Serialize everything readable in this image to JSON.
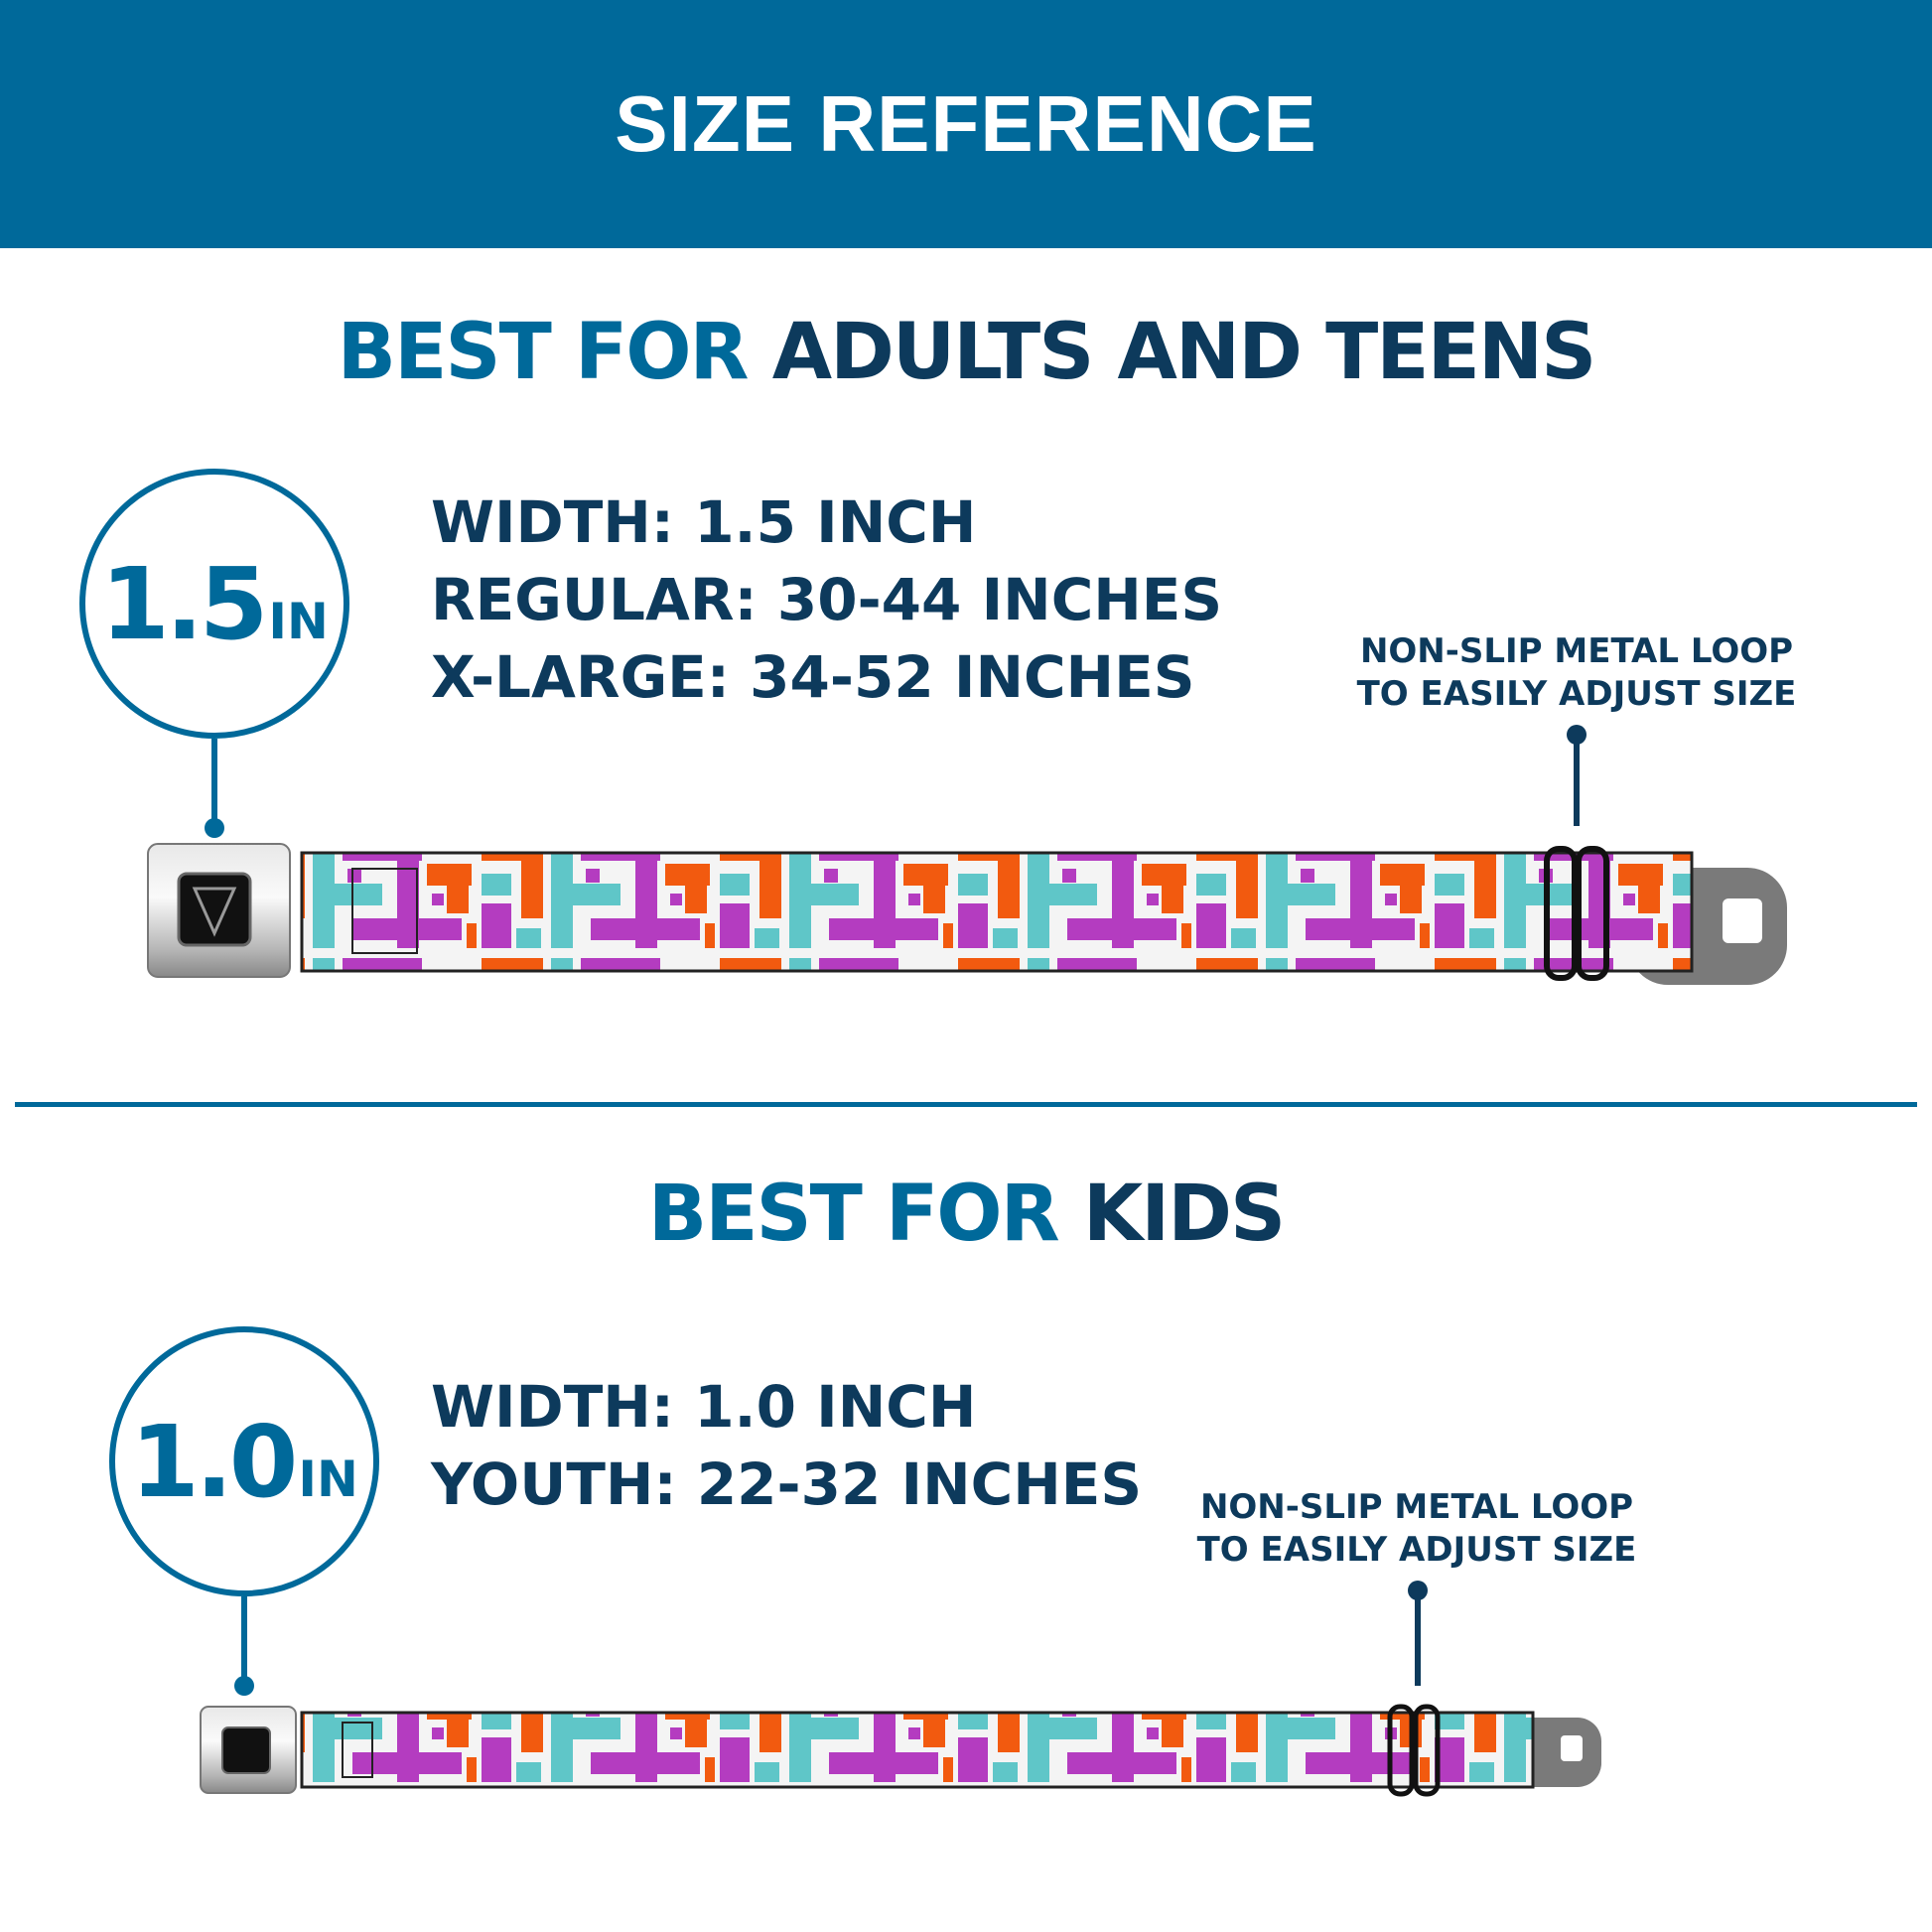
{
  "header": {
    "title": "SIZE REFERENCE"
  },
  "adults": {
    "heading_prefix": "BEST FOR",
    "heading_main": "ADULTS AND TEENS",
    "badge_number": "1.5",
    "badge_unit": "IN",
    "specs": [
      "WIDTH: 1.5 INCH",
      "REGULAR: 30-44 INCHES",
      "X-LARGE: 34-52 INCHES"
    ],
    "note": [
      "NON-SLIP METAL LOOP",
      "TO EASILY ADJUST SIZE"
    ]
  },
  "kids": {
    "heading_prefix": "BEST FOR",
    "heading_main": "KIDS",
    "badge_number": "1.0",
    "badge_unit": "IN",
    "specs": [
      "WIDTH: 1.0 INCH",
      "YOUTH: 22-32 INCHES"
    ],
    "note": [
      "NON-SLIP METAL LOOP",
      "TO EASILY ADJUST SIZE"
    ]
  },
  "colors": {
    "brand_blue": "#00699a",
    "navy": "#0d3a5c",
    "orange": "#f25a0f",
    "purple": "#b43cc0",
    "teal": "#5fc6c8"
  },
  "icons": [
    "buckle-logo-icon"
  ]
}
